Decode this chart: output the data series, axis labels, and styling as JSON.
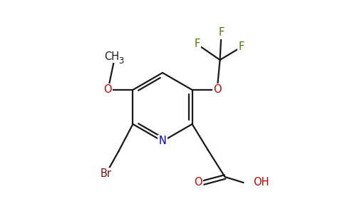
{
  "bg_color": "#ffffff",
  "bond_color": "#1a1a1a",
  "atom_colors": {
    "N": "#0000ee",
    "O": "#cc0000",
    "Br": "#7b1010",
    "F": "#4a7a00",
    "C": "#1a1a1a"
  },
  "figsize": [
    4.84,
    3.0
  ],
  "dpi": 100,
  "lw": 1.6,
  "fs": 10.5
}
